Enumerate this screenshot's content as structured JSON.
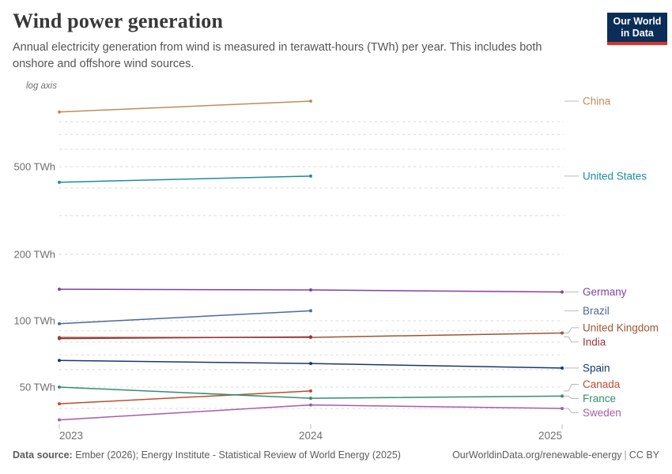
{
  "header": {
    "title": "Wind power generation",
    "subtitle": "Annual electricity generation from wind is measured in terawatt-hours (TWh) per year. This includes both onshore and offshore wind sources.",
    "logo_line1": "Our World",
    "logo_line2": "in Data",
    "logo_bg_color": "#0A2E57",
    "logo_bar_color": "#DC3228"
  },
  "chart_data": {
    "type": "line",
    "y_axis_type": "log",
    "log_axis_label": "log axis",
    "unit": "TWh",
    "grid": true,
    "legend_position": "right-labels",
    "xlim": [
      2023,
      2025
    ],
    "ylim": [
      32,
      1100
    ],
    "x_ticks": [
      "2023",
      "2024",
      "2025"
    ],
    "y_tick_labels": [
      {
        "value": 500,
        "label": "500 TWh"
      },
      {
        "value": 200,
        "label": "200 TWh"
      },
      {
        "value": 100,
        "label": "100 TWh"
      },
      {
        "value": 50,
        "label": "50 TWh"
      }
    ],
    "minor_gridline_values": [
      800,
      700,
      600,
      400,
      300,
      90,
      80,
      70,
      60,
      40
    ],
    "series": [
      {
        "name": "China",
        "color": "#BC8E5A",
        "years": [
          2023,
          2024
        ],
        "values": [
          886,
          992
        ]
      },
      {
        "name": "United States",
        "color": "#1F8C9B",
        "years": [
          2023,
          2024
        ],
        "values": [
          425,
          453
        ]
      },
      {
        "name": "Germany",
        "color": "#7E41A0",
        "years": [
          2023,
          2024,
          2025
        ],
        "values": [
          139,
          138,
          135
        ]
      },
      {
        "name": "Brazil",
        "color": "#4C6A96",
        "years": [
          2023,
          2024
        ],
        "values": [
          97,
          111
        ]
      },
      {
        "name": "United Kingdom",
        "color": "#9E5434",
        "years": [
          2023,
          2024,
          2025
        ],
        "values": [
          84,
          84,
          88
        ]
      },
      {
        "name": "India",
        "color": "#963741",
        "years": [
          2023,
          2024
        ],
        "values": [
          83,
          84.5
        ]
      },
      {
        "name": "Spain",
        "color": "#1A3866",
        "years": [
          2023,
          2024,
          2025
        ],
        "values": [
          66,
          64,
          61
        ]
      },
      {
        "name": "Canada",
        "color": "#BE4B2B",
        "years": [
          2023,
          2024
        ],
        "values": [
          42,
          48
        ]
      },
      {
        "name": "France",
        "color": "#338E6E",
        "years": [
          2023,
          2024,
          2025
        ],
        "values": [
          50,
          44.5,
          45.5
        ]
      },
      {
        "name": "Sweden",
        "color": "#A85BA8",
        "years": [
          2023,
          2024,
          2025
        ],
        "values": [
          35.5,
          41.5,
          40
        ]
      }
    ]
  },
  "footer": {
    "source_label": "Data source:",
    "source_text": "Ember (2026); Energy Institute - Statistical Review of World Energy (2025)",
    "url": "OurWorldinData.org/renewable-energy",
    "separator": "|",
    "license": "CC BY"
  }
}
